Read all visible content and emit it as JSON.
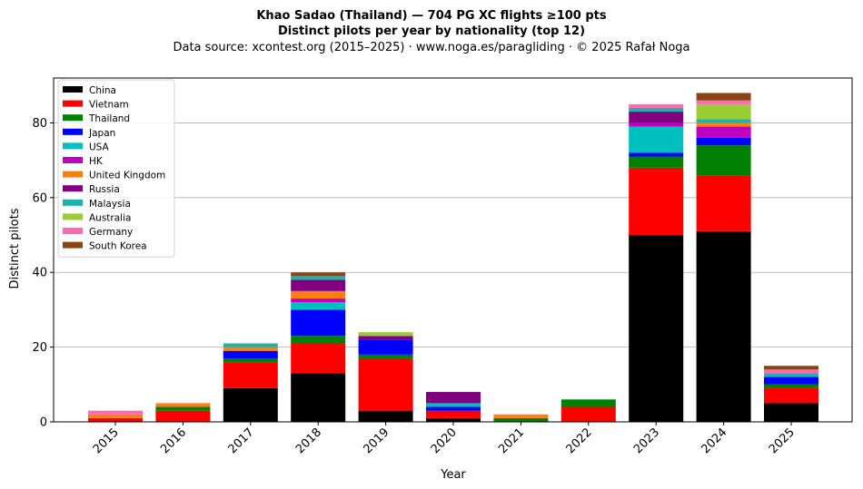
{
  "chart_data": {
    "type": "bar",
    "stacked": true,
    "title": "Khao Sadao (Thailand)  —  704 PG XC flights ≥100 pts",
    "subtitle": "Distinct pilots per year by nationality (top 12)",
    "source": "Data source: xcontest.org (2015–2025)  ·  www.noga.es/paragliding  ·  © 2025 Rafał Noga",
    "xlabel": "Year",
    "ylabel": "Distinct pilots",
    "ylim": [
      0,
      92
    ],
    "yticks": [
      0,
      20,
      40,
      60,
      80
    ],
    "grid": "y",
    "legend_position": "top-left",
    "categories": [
      "2015",
      "2016",
      "2017",
      "2018",
      "2019",
      "2020",
      "2021",
      "2022",
      "2023",
      "2024",
      "2025"
    ],
    "series": [
      {
        "name": "China",
        "color": "#000000",
        "values": [
          0,
          0,
          9,
          13,
          3,
          1,
          0,
          0,
          50,
          51,
          5
        ]
      },
      {
        "name": "Vietnam",
        "color": "#ff0000",
        "values": [
          1,
          3,
          7,
          8,
          14,
          2,
          0,
          4,
          18,
          15,
          4
        ]
      },
      {
        "name": "Thailand",
        "color": "#008000",
        "values": [
          0,
          1,
          1,
          2,
          1,
          0,
          1,
          2,
          3,
          8,
          1
        ]
      },
      {
        "name": "Japan",
        "color": "#0000ff",
        "values": [
          0,
          0,
          2,
          7,
          4,
          1,
          0,
          0,
          1,
          2,
          2
        ]
      },
      {
        "name": "USA",
        "color": "#00bfbf",
        "values": [
          0,
          0,
          0,
          2,
          0,
          1,
          0,
          0,
          7,
          0,
          0
        ]
      },
      {
        "name": "HK",
        "color": "#bf00bf",
        "values": [
          0,
          0,
          0,
          1,
          0,
          0,
          0,
          0,
          1,
          3,
          0
        ]
      },
      {
        "name": "United Kingdom",
        "color": "#ff7f0e",
        "values": [
          1,
          1,
          1,
          2,
          0,
          0,
          1,
          0,
          0,
          1,
          0
        ]
      },
      {
        "name": "Russia",
        "color": "#800080",
        "values": [
          0,
          0,
          0,
          3,
          1,
          3,
          0,
          0,
          3,
          0,
          0
        ]
      },
      {
        "name": "Malaysia",
        "color": "#20b2aa",
        "values": [
          0,
          0,
          1,
          1,
          0,
          0,
          0,
          0,
          1,
          1,
          1
        ]
      },
      {
        "name": "Australia",
        "color": "#9acd32",
        "values": [
          0,
          0,
          0,
          0,
          1,
          0,
          0,
          0,
          0,
          4,
          0
        ]
      },
      {
        "name": "Germany",
        "color": "#ff69b4",
        "values": [
          1,
          0,
          0,
          0,
          0,
          0,
          0,
          0,
          1,
          1,
          1
        ]
      },
      {
        "name": "South Korea",
        "color": "#8b4513",
        "values": [
          0,
          0,
          0,
          1,
          0,
          0,
          0,
          0,
          0,
          2,
          1
        ]
      }
    ]
  }
}
